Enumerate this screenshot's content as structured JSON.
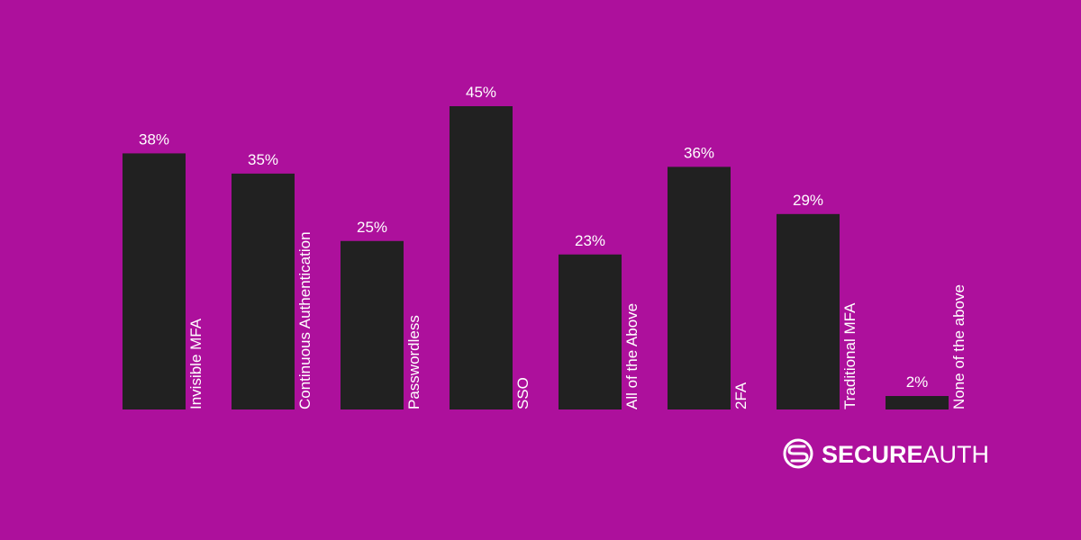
{
  "chart_data": {
    "type": "bar",
    "categories": [
      "Invisible MFA",
      "Continuous Authentication",
      "Passwordless",
      "SSO",
      "All of the Above",
      "2FA",
      "Traditional MFA",
      "None of the above"
    ],
    "values": [
      38,
      35,
      25,
      45,
      23,
      36,
      29,
      2
    ],
    "value_labels": [
      "38%",
      "35%",
      "25%",
      "45%",
      "23%",
      "36%",
      "29%",
      "2%"
    ],
    "color": "#212121"
  },
  "logo": {
    "bold": "SECURE",
    "regular": "AUTH"
  }
}
